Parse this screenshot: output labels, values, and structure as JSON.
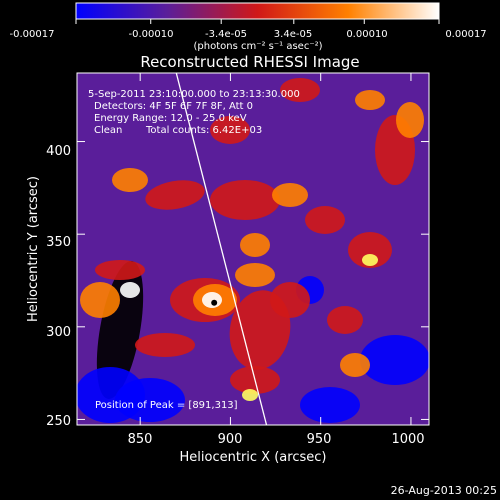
{
  "colorbar": {
    "tick_labels": [
      "-0.00017",
      "-0.00010",
      "-3.4e-05",
      "3.4e-05",
      "0.00010",
      "0.00017"
    ],
    "tick_values": [
      -0.00017,
      -0.0001,
      -3.4e-05,
      3.4e-05,
      0.0001,
      0.00017
    ],
    "range": [
      -0.00017,
      0.00017
    ],
    "units_label": "(photons cm⁻² s⁻¹ asec⁻²)",
    "colors": [
      "#0000ff",
      "#5a1e9a",
      "#d01818",
      "#ff8000",
      "#ffffff"
    ]
  },
  "chart_data": {
    "type": "heatmap",
    "title": "Reconstructed RHESSI Image",
    "xlabel": "Heliocentric X (arcsec)",
    "ylabel": "Heliocentric Y (arcsec)",
    "xlim": [
      815,
      1010
    ],
    "ylim": [
      247,
      437
    ],
    "xticks": [
      850,
      900,
      950,
      1000
    ],
    "yticks": [
      250,
      300,
      350,
      400
    ],
    "xtick_labels": [
      "850",
      "900",
      "950",
      "1000"
    ],
    "ytick_labels": [
      "250",
      "300",
      "350",
      "400"
    ],
    "peak_position": [
      891,
      313
    ],
    "limb_curve": [
      [
        870,
        437
      ],
      [
        893,
        350
      ],
      [
        920,
        247
      ]
    ]
  },
  "annotations": {
    "time_range": "5-Sep-2011 23:10:00.000 to 23:13:30.000",
    "detectors": "Detectors: 4F 5F 6F 7F 8F, Att 0",
    "energy_range": "Energy Range: 12.0 - 25.0 keV",
    "method": "Clean",
    "total_counts": "Total counts: 6.42E+03",
    "peak_label": "Position of Peak = [891,313]"
  },
  "footer": {
    "date_stamp": "26-Aug-2013 00:25"
  }
}
